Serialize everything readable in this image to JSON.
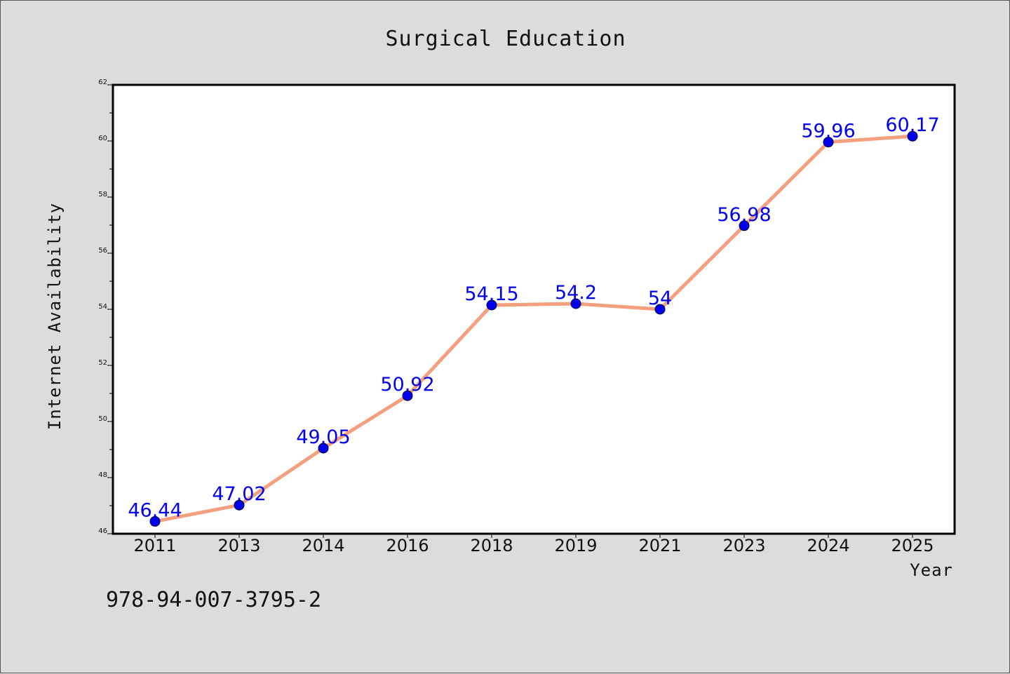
{
  "chart_data": {
    "type": "line",
    "title": "Surgical Education",
    "xlabel": "Year",
    "ylabel": "Internet Availability",
    "categories": [
      "2011",
      "2013",
      "2014",
      "2016",
      "2018",
      "2019",
      "2021",
      "2023",
      "2024",
      "2025"
    ],
    "series": [
      {
        "values": [
          46.44,
          47.02,
          49.05,
          50.92,
          54.15,
          54.2,
          54,
          56.98,
          59.96,
          60.17
        ],
        "labels": [
          "46.44",
          "47.02",
          "49.05",
          "50.92",
          "54.15",
          "54.2",
          "54",
          "56.98",
          "59.96",
          "60.17"
        ],
        "line_color": "#f4a07e",
        "marker_color": "#0000ee",
        "label_color": "#0000ee"
      }
    ],
    "ylim": [
      46,
      62
    ],
    "yticks": [
      46,
      48,
      50,
      52,
      54,
      56,
      58,
      60,
      62
    ],
    "grid": false,
    "legend": "none"
  },
  "footer": {
    "isbn": "978-94-007-3795-2"
  }
}
